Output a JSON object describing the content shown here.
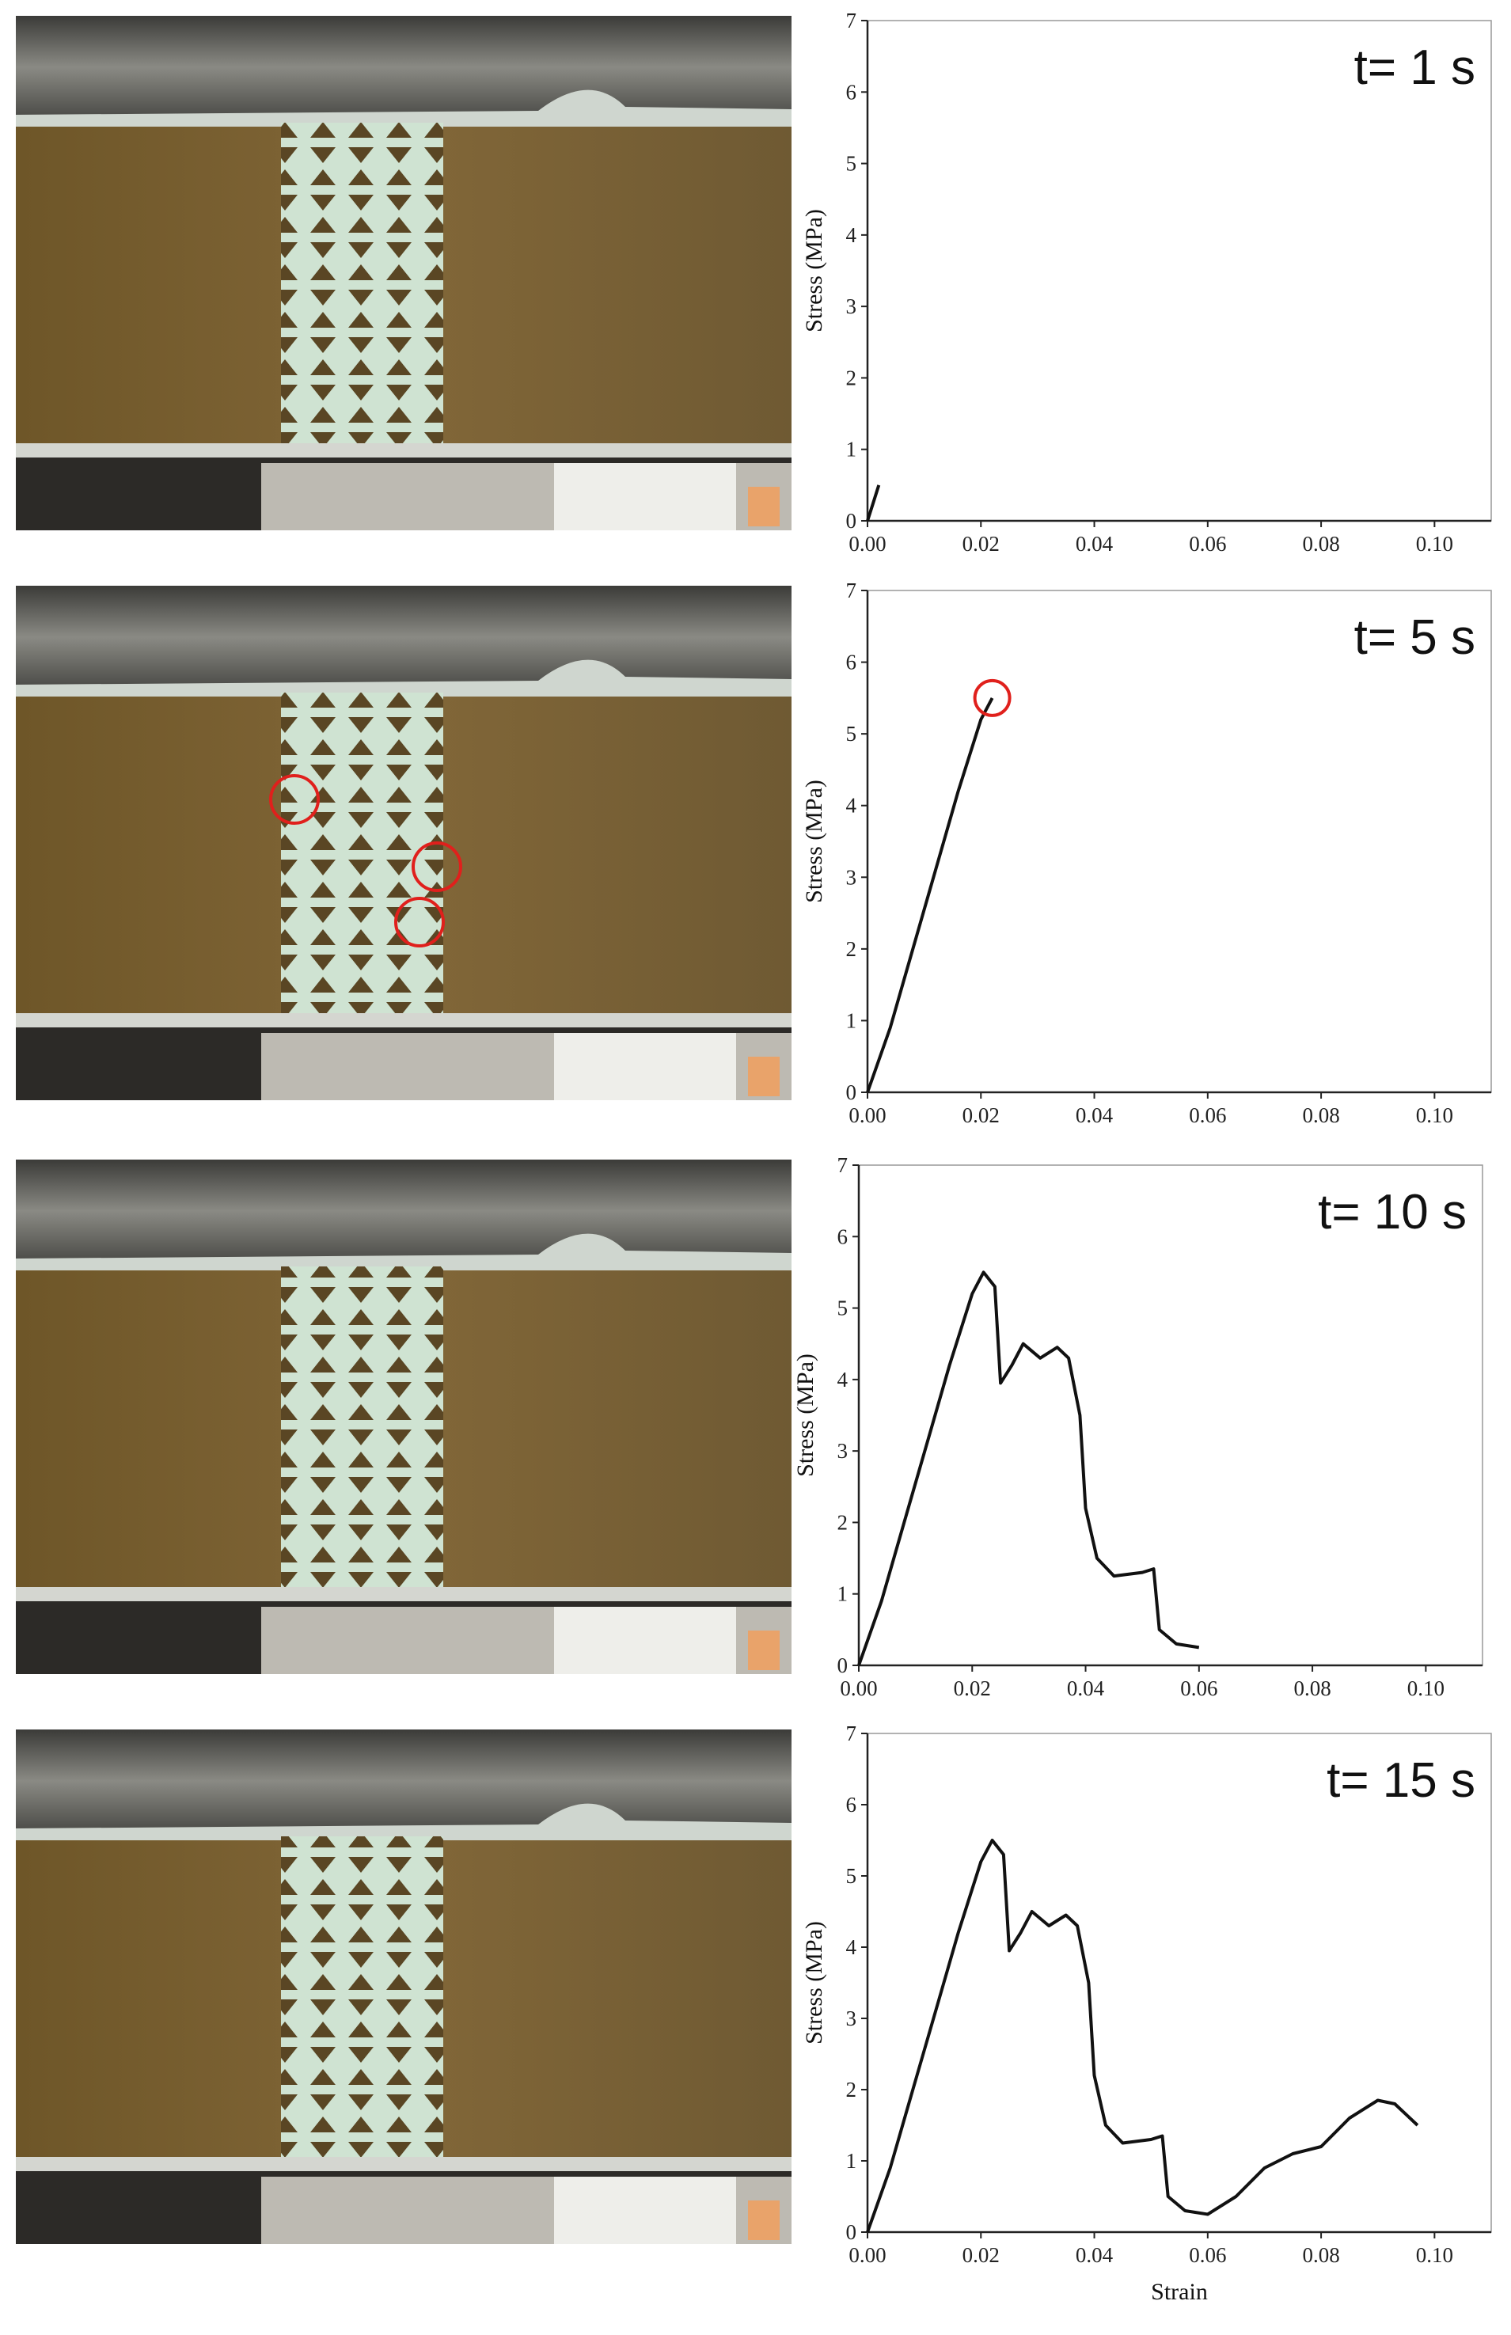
{
  "chart_data": [
    {
      "type": "line",
      "annotation": "t= 1 s",
      "ylabel": "Stress (MPa)",
      "color": "#111111",
      "x": [
        0,
        0.001,
        0.002
      ],
      "values": [
        0,
        0.25,
        0.5
      ],
      "xlim": [
        0,
        0.11
      ],
      "ylim": [
        0,
        7
      ],
      "xticks": [
        {
          "value": 0,
          "label": "0.00"
        },
        0.02,
        0.04,
        0.06,
        0.08,
        {
          "value": 0.1,
          "label": "0.10"
        }
      ],
      "yticks": [
        0,
        1,
        2,
        3,
        4,
        5,
        6,
        7
      ]
    },
    {
      "type": "line",
      "annotation": "t= 5 s",
      "ylabel": "Stress (MPa)",
      "color": "#111111",
      "x": [
        0,
        0.004,
        0.008,
        0.012,
        0.016,
        0.02,
        0.022
      ],
      "values": [
        0,
        0.9,
        2.0,
        3.1,
        4.2,
        5.2,
        5.5
      ],
      "xlim": [
        0,
        0.11
      ],
      "ylim": [
        0,
        7
      ],
      "xticks": [
        {
          "value": 0,
          "label": "0.00"
        },
        0.02,
        0.04,
        0.06,
        0.08,
        {
          "value": 0.1,
          "label": "0.10"
        }
      ],
      "yticks": [
        0,
        1,
        2,
        3,
        4,
        5,
        6,
        7
      ]
    },
    {
      "type": "line",
      "annotation": "t= 10 s",
      "ylabel": "Stress (MPa)",
      "color": "#111111",
      "x": [
        0,
        0.004,
        0.008,
        0.012,
        0.016,
        0.02,
        0.022,
        0.024,
        0.025,
        0.027,
        0.029,
        0.032,
        0.035,
        0.037,
        0.039,
        0.04,
        0.042,
        0.045,
        0.05,
        0.052,
        0.053,
        0.056,
        0.06
      ],
      "values": [
        0,
        0.9,
        2.0,
        3.1,
        4.2,
        5.2,
        5.5,
        5.3,
        3.95,
        4.2,
        4.5,
        4.3,
        4.45,
        4.3,
        3.5,
        2.2,
        1.5,
        1.25,
        1.3,
        1.35,
        0.5,
        0.3,
        0.25
      ],
      "xlim": [
        0,
        0.11
      ],
      "ylim": [
        0,
        7
      ],
      "xticks": [
        {
          "value": 0,
          "label": "0.00"
        },
        0.02,
        0.04,
        0.06,
        0.08,
        {
          "value": 0.1,
          "label": "0.10"
        }
      ],
      "yticks": [
        0,
        1,
        2,
        3,
        4,
        5,
        6,
        7
      ]
    },
    {
      "type": "line",
      "annotation": "t= 15 s",
      "ylabel": "Stress (MPa)",
      "xlabel": "Strain",
      "color": "#111111",
      "x": [
        0,
        0.004,
        0.008,
        0.012,
        0.016,
        0.02,
        0.022,
        0.024,
        0.025,
        0.027,
        0.029,
        0.032,
        0.035,
        0.037,
        0.039,
        0.04,
        0.042,
        0.045,
        0.05,
        0.052,
        0.053,
        0.056,
        0.06,
        0.065,
        0.07,
        0.075,
        0.08,
        0.085,
        0.09,
        0.093,
        0.097
      ],
      "values": [
        0,
        0.9,
        2.0,
        3.1,
        4.2,
        5.2,
        5.5,
        5.3,
        3.95,
        4.2,
        4.5,
        4.3,
        4.45,
        4.3,
        3.5,
        2.2,
        1.5,
        1.25,
        1.3,
        1.35,
        0.5,
        0.3,
        0.25,
        0.5,
        0.9,
        1.1,
        1.2,
        1.6,
        1.85,
        1.8,
        1.5
      ],
      "xlim": [
        0,
        0.11
      ],
      "ylim": [
        0,
        7
      ],
      "xticks": [
        {
          "value": 0,
          "label": "0.00"
        },
        0.02,
        0.04,
        0.06,
        0.08,
        {
          "value": 0.1,
          "label": "0.10"
        }
      ],
      "yticks": [
        0,
        1,
        2,
        3,
        4,
        5,
        6,
        7
      ]
    }
  ]
}
